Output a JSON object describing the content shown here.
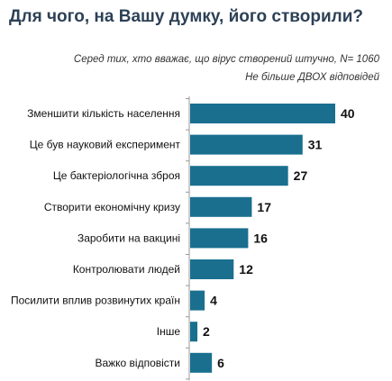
{
  "title": "Для чого, на Вашу думку, його створили?",
  "subtitle_1": "Серед тих, хто вважає, що вірус створений штучно, N= 1060",
  "subtitle_2": "Не більше ДВОХ відповідей",
  "colors": {
    "bar": "#1a6f8f",
    "axis": "#999999",
    "label": "#111111"
  },
  "chart_data": {
    "type": "bar",
    "orientation": "horizontal",
    "categories": [
      "Зменшити кількість населення",
      "Це був науковий експеримент",
      "Це бактеріологічна зброя",
      "Створити економічну кризу",
      "Заробити на вакцині",
      "Контролювати людей",
      "Посилити вплив розвинутих країн",
      "Інше",
      "Важко відповісти"
    ],
    "values": [
      40,
      31,
      27,
      17,
      16,
      12,
      4,
      2,
      6
    ],
    "title": "Для чого, на Вашу думку, його створили?",
    "xlabel": "",
    "ylabel": "",
    "xlim": [
      0,
      40
    ],
    "grid": false,
    "legend": "none"
  }
}
